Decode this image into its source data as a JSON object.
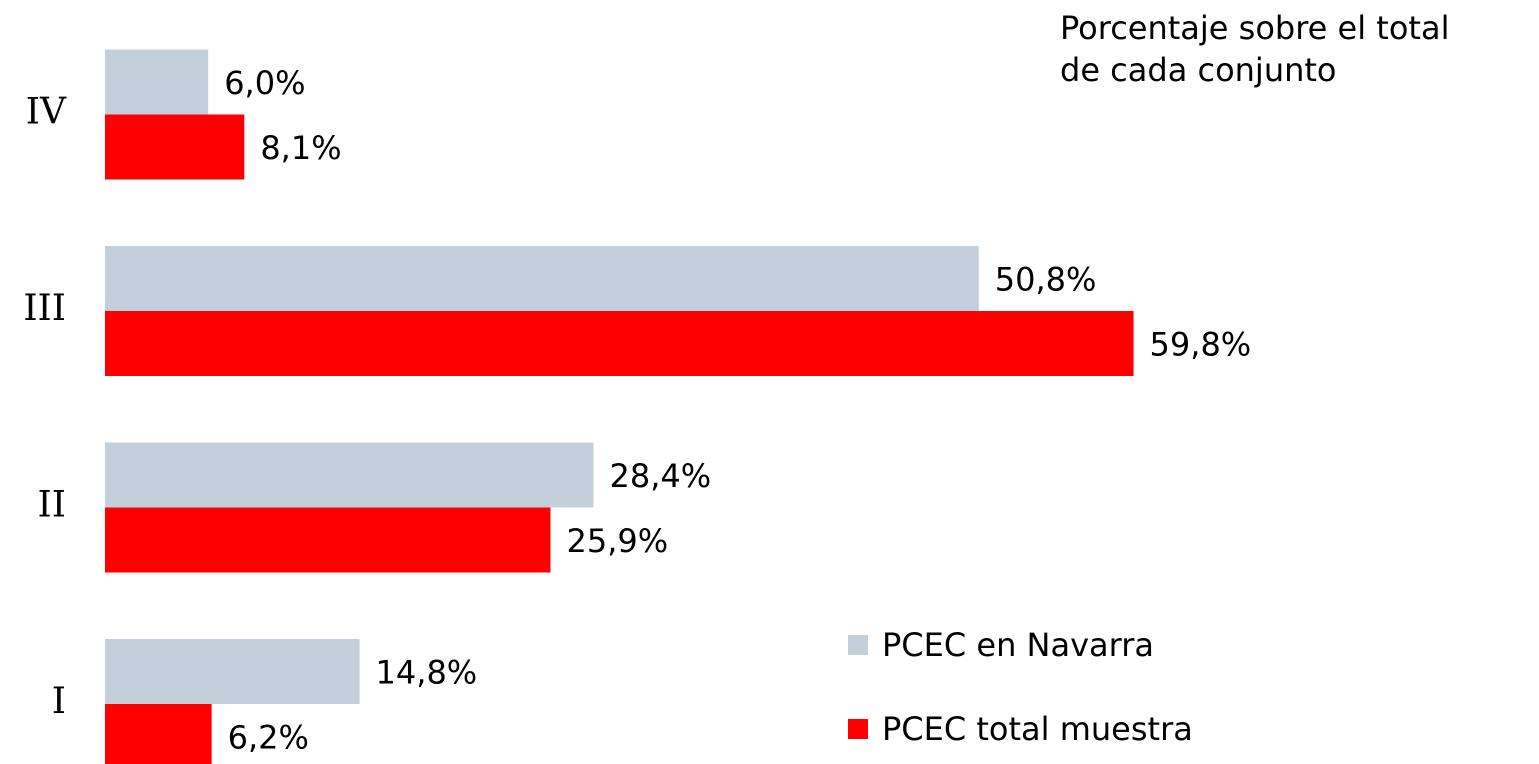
{
  "chart_data": {
    "type": "bar",
    "orientation": "horizontal",
    "annotation": [
      "Porcentaje sobre el total",
      "de cada conjunto"
    ],
    "categories": [
      "I",
      "II",
      "III",
      "IV"
    ],
    "series": [
      {
        "name": "PCEC en Navarra",
        "color": "#c3d0dc",
        "values": [
          14.8,
          28.4,
          50.8,
          6.0
        ],
        "value_labels": [
          "14,8%",
          "28,4%",
          "50,8%",
          "6,0%"
        ]
      },
      {
        "name": "PCEC total muestra",
        "color": "#ff0000",
        "values": [
          6.2,
          25.9,
          59.8,
          8.1
        ],
        "value_labels": [
          "6,2%",
          "25,9%",
          "59,8%",
          "8,1%"
        ]
      }
    ],
    "xlim": [
      0,
      60
    ],
    "grid": false,
    "legend": "bottom-right"
  }
}
